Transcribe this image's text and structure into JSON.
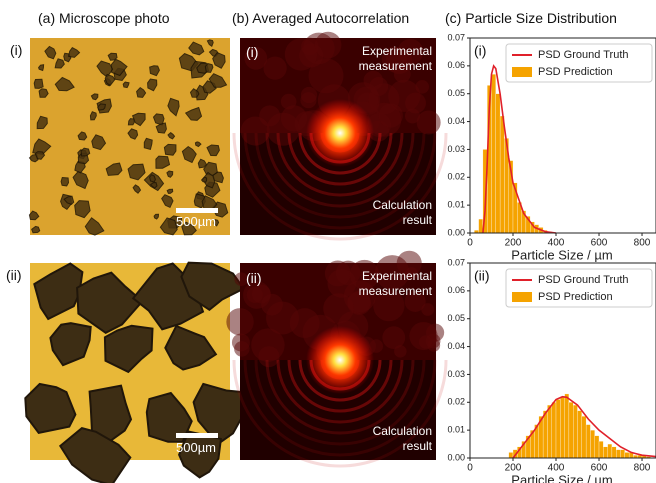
{
  "headings": [
    "(a) Microscope photo",
    "(b) Averaged Autocorrelation",
    "(c) Particle Size Distribution"
  ],
  "rows": [
    {
      "label": "(i)",
      "scale_bar": "500µm",
      "autocorrelation": {
        "label": "(i)",
        "top": "Experimental measurement",
        "bottom": "Calculation result"
      }
    },
    {
      "label": "(ii)",
      "scale_bar": "500µm",
      "autocorrelation": {
        "label": "(ii)",
        "top": "Experimental measurement",
        "bottom": "Calculation result"
      }
    }
  ],
  "chart_data": [
    {
      "type": "histogram",
      "label": "(i)",
      "x_label": "Particle Size / µm",
      "xlim": [
        0,
        865
      ],
      "xticks": [
        0,
        200,
        400,
        600,
        800
      ],
      "ylim": [
        0,
        0.07
      ],
      "yticks": [
        {
          "value": 0,
          "label": "0.00"
        },
        0.01,
        0.02,
        0.03,
        0.04,
        0.05,
        0.06,
        0.07
      ],
      "legend": "upper right",
      "series": [
        {
          "name": "PSD Ground Truth",
          "color": "#e0202a",
          "type": "line",
          "x": [
            60,
            70,
            80,
            90,
            100,
            110,
            120,
            140,
            160,
            180,
            200,
            250,
            300,
            350,
            400
          ],
          "values": [
            0,
            0.008,
            0.025,
            0.045,
            0.057,
            0.06,
            0.059,
            0.05,
            0.038,
            0.027,
            0.018,
            0.007,
            0.002,
            0.0005,
            0
          ]
        },
        {
          "name": "PSD Prediction",
          "color": "#f5a300",
          "type": "histogram",
          "bins": [
            0,
            20,
            40,
            60,
            80,
            100,
            120,
            140,
            160,
            180,
            200,
            220,
            240,
            260,
            280,
            300,
            320,
            340,
            360,
            380,
            400
          ],
          "values": [
            0,
            0.001,
            0.005,
            0.03,
            0.053,
            0.057,
            0.05,
            0.042,
            0.034,
            0.026,
            0.018,
            0.011,
            0.008,
            0.006,
            0.004,
            0.003,
            0.002,
            0.001,
            0.0005,
            0
          ]
        }
      ]
    },
    {
      "type": "histogram",
      "label": "(ii)",
      "x_label": "Particle Size / µm",
      "xlim": [
        0,
        865
      ],
      "xticks": [
        0,
        200,
        400,
        600,
        800
      ],
      "ylim": [
        0,
        0.07
      ],
      "yticks": [
        {
          "value": 0,
          "label": "0.00"
        },
        0.01,
        0.02,
        0.03,
        0.04,
        0.05,
        0.06,
        0.07
      ],
      "legend": "upper right",
      "series": [
        {
          "name": "PSD Ground Truth",
          "color": "#e0202a",
          "type": "line",
          "x": [
            200,
            250,
            300,
            350,
            400,
            430,
            450,
            500,
            550,
            600,
            650,
            700,
            750,
            800,
            865
          ],
          "values": [
            0,
            0.005,
            0.01,
            0.016,
            0.021,
            0.022,
            0.0218,
            0.019,
            0.014,
            0.01,
            0.007,
            0.004,
            0.002,
            0.001,
            0.0005
          ]
        },
        {
          "name": "PSD Prediction",
          "color": "#f5a300",
          "type": "histogram",
          "bins": [
            180,
            200,
            220,
            240,
            260,
            280,
            300,
            320,
            340,
            360,
            380,
            400,
            420,
            440,
            460,
            480,
            500,
            520,
            540,
            560,
            580,
            600,
            620,
            640,
            660,
            680,
            700,
            720,
            740,
            760,
            780,
            800,
            820,
            840,
            860
          ],
          "values": [
            0.002,
            0.003,
            0.004,
            0.006,
            0.008,
            0.01,
            0.012,
            0.015,
            0.017,
            0.019,
            0.02,
            0.021,
            0.022,
            0.023,
            0.02,
            0.019,
            0.017,
            0.015,
            0.012,
            0.01,
            0.008,
            0.006,
            0.004,
            0.005,
            0.004,
            0.003,
            0.003,
            0.002,
            0.002,
            0.001,
            0.001,
            0.001,
            0.0005,
            0
          ]
        }
      ]
    }
  ]
}
